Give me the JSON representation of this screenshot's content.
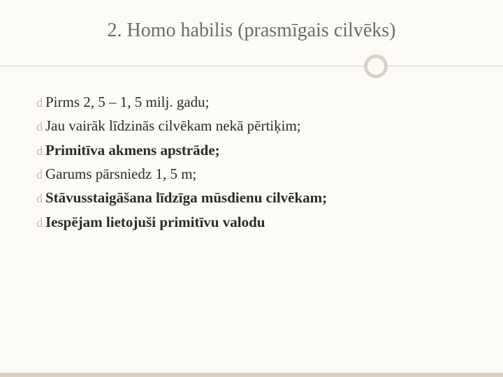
{
  "title": "2. Homo habilis (prasmīgais cilvēks)",
  "bullets": [
    {
      "text": "Pirms 2, 5 – 1, 5 milj. gadu;",
      "bold": false
    },
    {
      "text": "Jau vairāk līdzinās cilvēkam nekā pērtiķim;",
      "bold": false
    },
    {
      "text": "Primitīva akmens apstrāde;",
      "bold": true
    },
    {
      "text": "Garums pārsniedz 1, 5 m;",
      "bold": false
    },
    {
      "text": "Stāvusstaigāšana līdzīga mūsdienu cilvēkam;",
      "bold": true
    },
    {
      "text": "Iespējam lietojuši primitīvu valodu",
      "bold": true
    }
  ],
  "style": {
    "background_color": "#fdfbf7",
    "title_color": "#6b6b6b",
    "title_fontsize": 28,
    "text_color": "#2a2a2a",
    "text_fontsize": 21,
    "bullet_glyph": "d",
    "bullet_color": "#c9bfa8",
    "divider_line_color": "#cfcfcf",
    "divider_circle_border": "#d9d2c5",
    "divider_circle_border_width": 5,
    "footer_bar_color": "#d9d2c5",
    "font_family": "Georgia, serif"
  }
}
